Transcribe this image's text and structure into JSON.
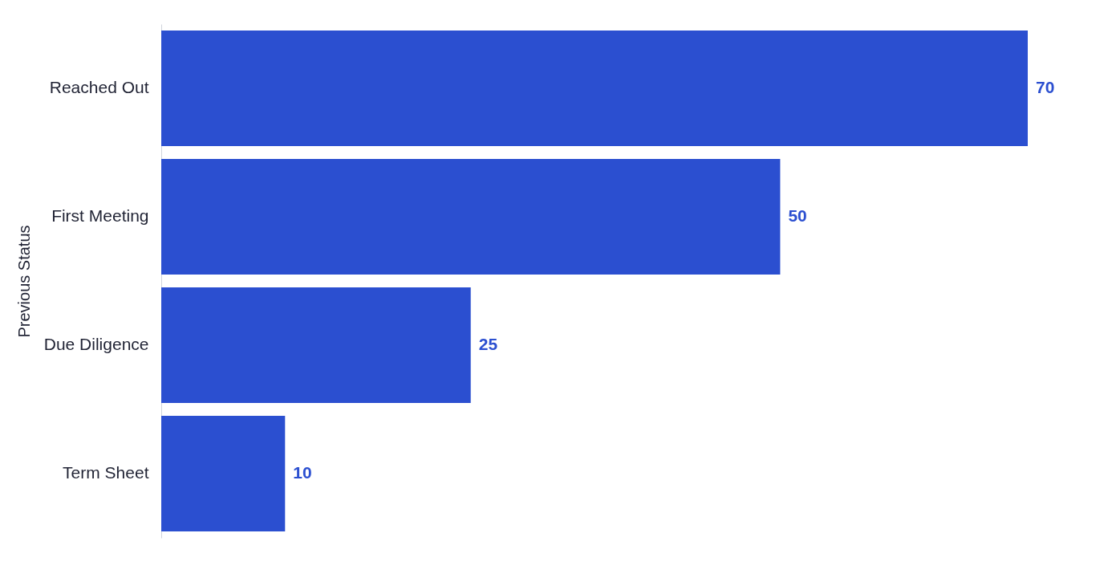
{
  "chart_data": {
    "type": "bar",
    "orientation": "horizontal",
    "ylabel": "Previous Status",
    "categories": [
      "Reached Out",
      "First Meeting",
      "Due Diligence",
      "Term Sheet"
    ],
    "values": [
      70,
      50,
      25,
      10
    ],
    "color": "#2b4fd0",
    "data_labels": true
  }
}
